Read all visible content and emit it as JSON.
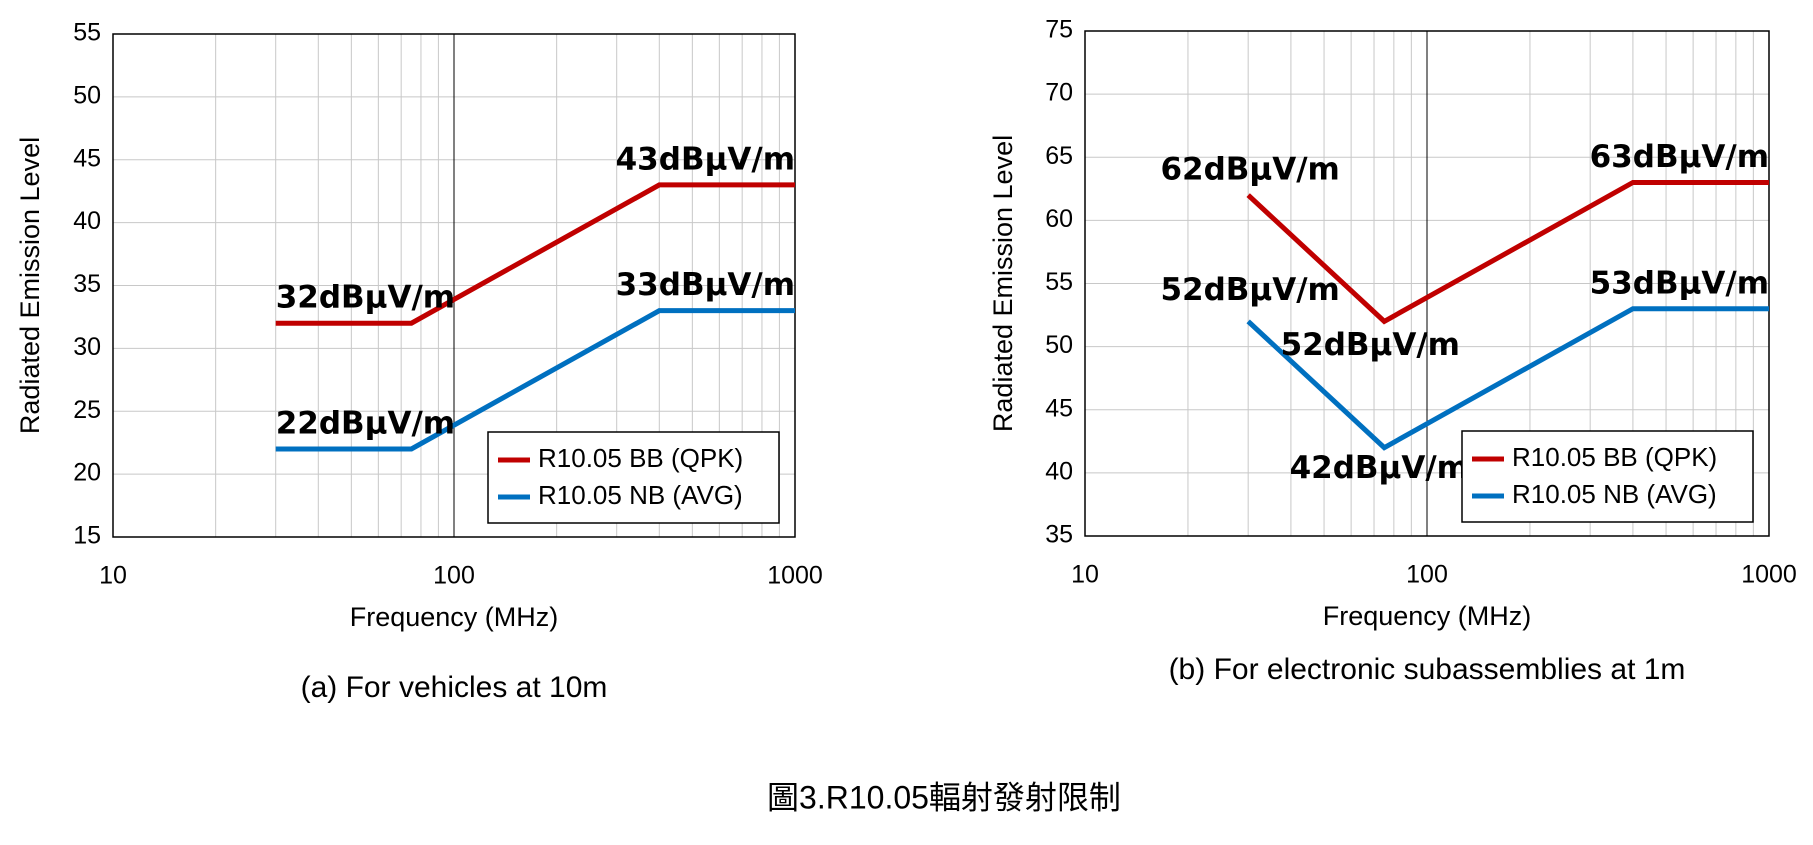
{
  "figure_caption": "圖3.R10.05輻射發射限制",
  "chart_data": [
    {
      "type": "line",
      "caption": "(a) For vehicles at 10m",
      "xlabel": "Frequency (MHz)",
      "ylabel": "Radiated Emission Level",
      "x": [
        30,
        75,
        400,
        1000
      ],
      "xscale": "log",
      "xlim": [
        10,
        1000
      ],
      "xticks": [
        10,
        100,
        1000
      ],
      "x_minor_grid": [
        20,
        30,
        40,
        50,
        60,
        70,
        80,
        90,
        200,
        300,
        400,
        500,
        600,
        700,
        800,
        900
      ],
      "ylim": [
        15,
        55
      ],
      "yticks": [
        15,
        20,
        25,
        30,
        35,
        40,
        45,
        50,
        55
      ],
      "grid": true,
      "legend": "lower right",
      "series": [
        {
          "name": "R10.05 BB (QPK)",
          "color": "#c00000",
          "values": [
            32,
            32,
            43,
            43
          ]
        },
        {
          "name": "R10.05 NB (AVG)",
          "color": "#0070c0",
          "values": [
            22,
            22,
            33,
            33
          ]
        }
      ],
      "annotations": [
        "32dBµV/m",
        "43dBµV/m",
        "22dBµV/m",
        "33dBµV/m"
      ]
    },
    {
      "type": "line",
      "caption": "(b) For electronic subassemblies at 1m",
      "xlabel": "Frequency (MHz)",
      "ylabel": "Radiated Emission Level",
      "x": [
        30,
        75,
        400,
        1000
      ],
      "xscale": "log",
      "xlim": [
        10,
        1000
      ],
      "xticks": [
        10,
        100,
        1000
      ],
      "x_minor_grid": [
        20,
        30,
        40,
        50,
        60,
        70,
        80,
        90,
        200,
        300,
        400,
        500,
        600,
        700,
        800,
        900
      ],
      "ylim": [
        35,
        75
      ],
      "yticks": [
        35,
        40,
        45,
        50,
        55,
        60,
        65,
        70,
        75
      ],
      "grid": true,
      "legend": "lower right",
      "series": [
        {
          "name": "R10.05 BB (QPK)",
          "color": "#c00000",
          "values": [
            62,
            52,
            63,
            63
          ]
        },
        {
          "name": "R10.05 NB (AVG)",
          "color": "#0070c0",
          "values": [
            52,
            42,
            53,
            53
          ]
        }
      ],
      "annotations": [
        "62dBµV/m",
        "52dBµV/m",
        "63dBµV/m",
        "52dBµV/m",
        "42dBµV/m",
        "53dBµV/m"
      ]
    }
  ]
}
